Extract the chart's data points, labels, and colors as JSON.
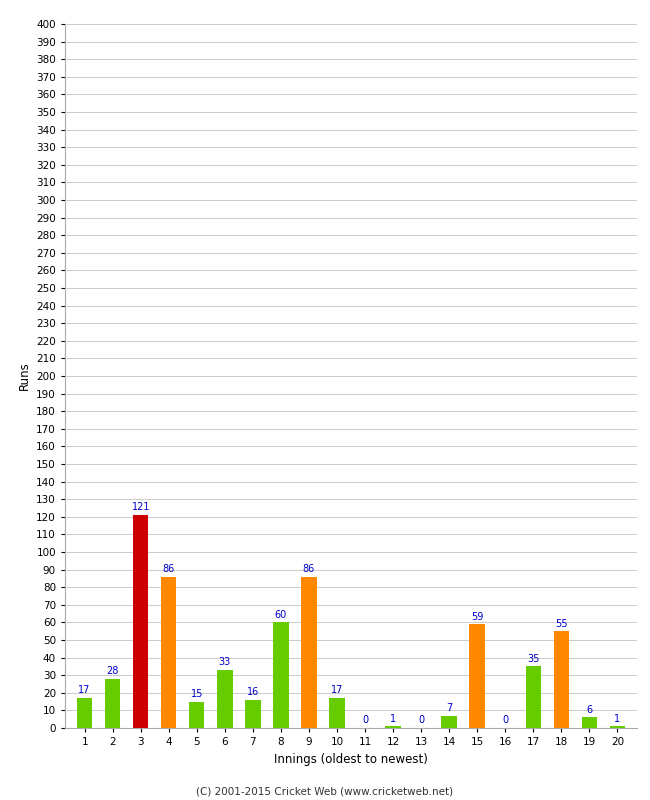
{
  "xlabel": "Innings (oldest to newest)",
  "ylabel": "Runs",
  "innings": [
    1,
    2,
    3,
    4,
    5,
    6,
    7,
    8,
    9,
    10,
    11,
    12,
    13,
    14,
    15,
    16,
    17,
    18,
    19,
    20
  ],
  "values": [
    17,
    28,
    121,
    86,
    15,
    33,
    16,
    60,
    86,
    17,
    0,
    1,
    0,
    7,
    59,
    0,
    35,
    55,
    6,
    1
  ],
  "colors": [
    "#66cc00",
    "#66cc00",
    "#cc0000",
    "#ff8800",
    "#66cc00",
    "#66cc00",
    "#66cc00",
    "#66cc00",
    "#ff8800",
    "#66cc00",
    "#66cc00",
    "#66cc00",
    "#66cc00",
    "#66cc00",
    "#ff8800",
    "#66cc00",
    "#66cc00",
    "#ff8800",
    "#66cc00",
    "#66cc00"
  ],
  "ylim": [
    0,
    400
  ],
  "yticks": [
    0,
    10,
    20,
    30,
    40,
    50,
    60,
    70,
    80,
    90,
    100,
    110,
    120,
    130,
    140,
    150,
    160,
    170,
    180,
    190,
    200,
    210,
    220,
    230,
    240,
    250,
    260,
    270,
    280,
    290,
    300,
    310,
    320,
    330,
    340,
    350,
    360,
    370,
    380,
    390,
    400
  ],
  "footer": "(C) 2001-2015 Cricket Web (www.cricketweb.net)",
  "label_color": "#0000cc",
  "background_color": "#ffffff",
  "grid_color": "#cccccc",
  "bar_width": 0.55
}
